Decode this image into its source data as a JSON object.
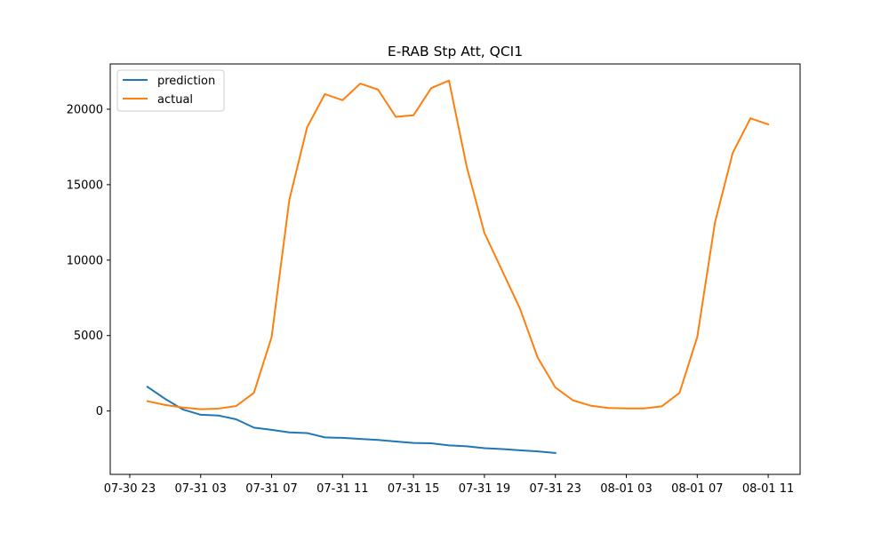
{
  "chart_data": {
    "type": "line",
    "title": "E-RAB Stp Att, QCI1",
    "xlabel": "",
    "ylabel": "",
    "x_tick_labels": [
      "07-30 23",
      "07-31 03",
      "07-31 07",
      "07-31 11",
      "07-31 15",
      "07-31 19",
      "07-31 23",
      "08-01 03",
      "08-01 07",
      "08-01 11"
    ],
    "y_ticks": [
      0,
      5000,
      10000,
      15000,
      20000
    ],
    "ylim": [
      -4200,
      23000
    ],
    "xlim_hours_from_0730_23": [
      -1.1,
      37.8
    ],
    "grid": false,
    "legend_position": "upper-left",
    "series": [
      {
        "name": "prediction",
        "color": "#1f77b4",
        "start": "07-31 00",
        "values": [
          1600,
          800,
          100,
          -250,
          -300,
          -550,
          -1100,
          -1250,
          -1420,
          -1460,
          -1750,
          -1780,
          -1850,
          -1920,
          -2020,
          -2120,
          -2140,
          -2280,
          -2340,
          -2460,
          -2520,
          -2600,
          -2680,
          -2780
        ]
      },
      {
        "name": "actual",
        "color": "#ff7f0e",
        "start": "07-31 00",
        "values": [
          650,
          400,
          230,
          120,
          160,
          330,
          1200,
          4900,
          14000,
          18800,
          21000,
          20600,
          21700,
          21300,
          19500,
          19600,
          21400,
          21900,
          16200,
          11800,
          9300,
          6800,
          3550,
          1560,
          700,
          350,
          200,
          170,
          170,
          310,
          1200,
          4900,
          12500,
          17100,
          19400,
          19000
        ]
      }
    ]
  }
}
